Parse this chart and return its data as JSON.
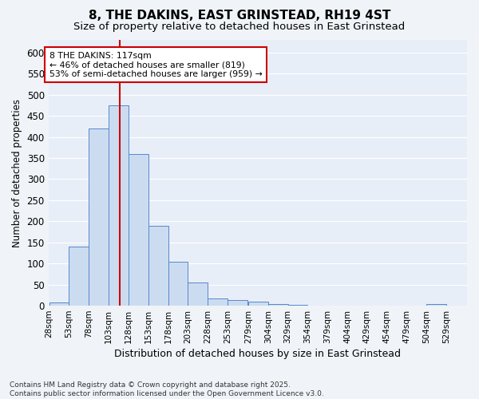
{
  "title1": "8, THE DAKINS, EAST GRINSTEAD, RH19 4ST",
  "title2": "Size of property relative to detached houses in East Grinstead",
  "xlabel": "Distribution of detached houses by size in East Grinstead",
  "ylabel": "Number of detached properties",
  "bin_edges": [
    28,
    53,
    78,
    103,
    128,
    153,
    178,
    203,
    228,
    253,
    279,
    304,
    329,
    354,
    379,
    404,
    429,
    454,
    479,
    504,
    529
  ],
  "bin_labels": [
    "28sqm",
    "53sqm",
    "78sqm",
    "103sqm",
    "128sqm",
    "153sqm",
    "178sqm",
    "203sqm",
    "228sqm",
    "253sqm",
    "279sqm",
    "304sqm",
    "329sqm",
    "354sqm",
    "379sqm",
    "404sqm",
    "429sqm",
    "454sqm",
    "479sqm",
    "504sqm",
    "529sqm"
  ],
  "bar_heights": [
    8,
    140,
    420,
    475,
    360,
    190,
    105,
    55,
    18,
    13,
    10,
    3,
    2,
    1,
    1,
    0,
    0,
    0,
    0,
    3
  ],
  "bar_color": "#ccdcf0",
  "bar_edge_color": "#5588cc",
  "red_line_x": 117,
  "ylim": [
    0,
    630
  ],
  "yticks": [
    0,
    50,
    100,
    150,
    200,
    250,
    300,
    350,
    400,
    450,
    500,
    550,
    600
  ],
  "annotation_text": "8 THE DAKINS: 117sqm\n← 46% of detached houses are smaller (819)\n53% of semi-detached houses are larger (959) →",
  "annotation_box_color": "#ffffff",
  "annotation_box_edge": "#cc0000",
  "footnote": "Contains HM Land Registry data © Crown copyright and database right 2025.\nContains public sector information licensed under the Open Government Licence v3.0.",
  "bg_color": "#f0f4f8",
  "plot_bg_color": "#e8eef8",
  "grid_color": "#ffffff",
  "title_fontsize": 11,
  "subtitle_fontsize": 9.5
}
